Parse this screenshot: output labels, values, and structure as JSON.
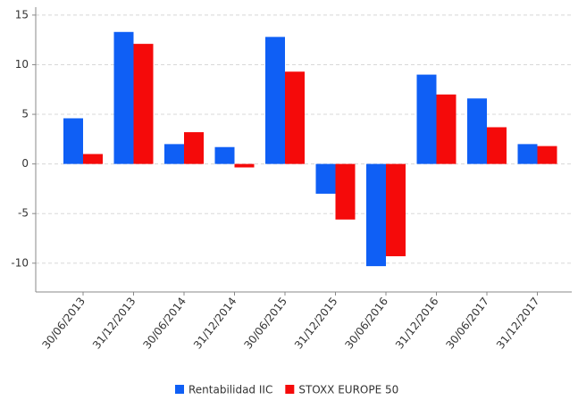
{
  "chart_data": {
    "type": "bar",
    "categories": [
      "30/06/2013",
      "31/12/2013",
      "30/06/2014",
      "31/12/2014",
      "30/06/2015",
      "31/12/2015",
      "30/06/2016",
      "31/12/2016",
      "30/06/2017",
      "31/12/2017"
    ],
    "series": [
      {
        "name": "Rentabilidad IIC",
        "color": "#0f5ff5",
        "values": [
          4.6,
          13.3,
          2.0,
          1.7,
          12.8,
          -3.0,
          -10.3,
          9.0,
          6.6,
          2.0
        ]
      },
      {
        "name": "STOXX EUROPE 50",
        "color": "#f50a0a",
        "values": [
          1.0,
          12.1,
          3.2,
          -0.35,
          9.3,
          -5.6,
          -9.3,
          7.0,
          3.7,
          1.8
        ]
      }
    ],
    "ylim": [
      -12.9,
      15.8
    ],
    "yticks": [
      15,
      10,
      5,
      0,
      -5,
      -10
    ],
    "grid": true,
    "legend": "bottom"
  }
}
